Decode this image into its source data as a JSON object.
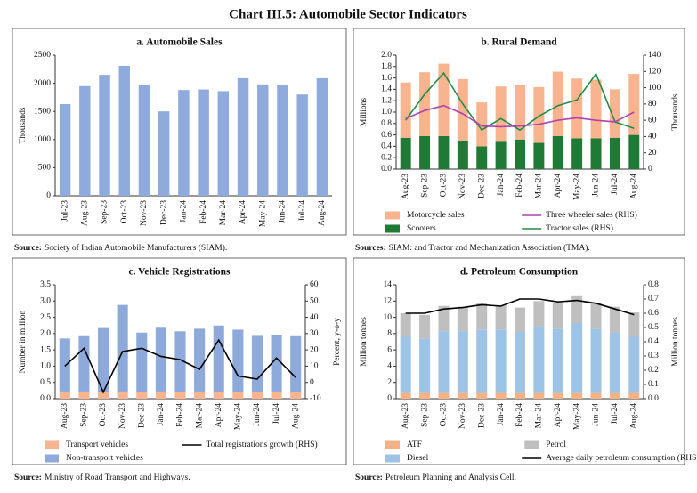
{
  "title": "Chart III.5: Automobile Sector Indicators",
  "chart_data": [
    {
      "type": "bar",
      "title": "a. Automobile Sales",
      "ylabel": "Thousands",
      "color": "#8faadc",
      "categories": [
        "Jul-23",
        "Aug-23",
        "Sep-23",
        "Oct-23",
        "Nov-23",
        "Dec-23",
        "Jan-24",
        "Feb-24",
        "Mar-24",
        "Apr-24",
        "May-24",
        "Jun-24",
        "Jul-24",
        "Aug-24"
      ],
      "values": [
        1630,
        1950,
        2150,
        2310,
        1970,
        1500,
        1880,
        1890,
        1860,
        2090,
        1980,
        1970,
        1800,
        2090
      ],
      "ylim": [
        0,
        2500
      ],
      "yticks": [
        0,
        500,
        1000,
        1500,
        2000,
        2500
      ],
      "source_label": "Source:",
      "source": "Society of Indian Automobile Manufacturers (SIAM)."
    },
    {
      "type": "combo",
      "title": "b. Rural Demand",
      "ylabel": "Millions",
      "y2label": "Thousands",
      "categories": [
        "Aug-23",
        "Sep-23",
        "Oct-23",
        "Nov-23",
        "Dec-23",
        "Jan-24",
        "Feb-24",
        "Mar-24",
        "Apr-24",
        "May-24",
        "Jun-24",
        "Jul-24",
        "Aug-24"
      ],
      "series": [
        {
          "name": "Scooters",
          "kind": "bar",
          "color": "#1f7a35",
          "values": [
            0.55,
            0.58,
            0.58,
            0.5,
            0.4,
            0.48,
            0.52,
            0.46,
            0.58,
            0.54,
            0.54,
            0.55,
            0.6
          ]
        },
        {
          "name": "Motorcycle sales",
          "kind": "bar",
          "color": "#f7b48f",
          "values": [
            0.97,
            1.12,
            1.27,
            1.08,
            0.77,
            0.97,
            0.95,
            0.98,
            1.13,
            1.05,
            1.03,
            0.85,
            1.07
          ]
        },
        {
          "name": "Tractor sales (RHS)",
          "kind": "line",
          "axis": "y2",
          "color": "#1e8c46",
          "values": [
            60,
            92,
            118,
            80,
            48,
            62,
            48,
            65,
            78,
            85,
            117,
            58,
            50
          ]
        },
        {
          "name": "Three wheeler sales (RHS)",
          "kind": "line",
          "axis": "y2",
          "color": "#b03fb0",
          "values": [
            62,
            72,
            78,
            68,
            53,
            52,
            53,
            55,
            60,
            63,
            60,
            58,
            70
          ]
        }
      ],
      "ylim": [
        0,
        2
      ],
      "yticks": [
        {
          "value": 0,
          "label": "0.0"
        },
        0.2,
        0.4,
        0.6,
        0.8,
        {
          "value": 1,
          "label": "1.0"
        },
        1.2,
        1.4,
        1.6,
        1.8,
        {
          "value": 2,
          "label": "2.0"
        }
      ],
      "y2lim": [
        0,
        140
      ],
      "y2ticks": [
        0,
        20,
        40,
        60,
        80,
        100,
        120,
        140
      ],
      "source_label": "Sources:",
      "source": "SIAM: and Tractor and Mechanization Association (TMA)."
    },
    {
      "type": "combo",
      "title": "c. Vehicle Registrations",
      "ylabel": "Number in million",
      "y2label": "Percent, y-o-y",
      "categories": [
        "Aug-23",
        "Sep-23",
        "Oct-23",
        "Nov-23",
        "Dec-23",
        "Jan-24",
        "Feb-24",
        "Mar-24",
        "Apr-24",
        "May-24",
        "Jun-24",
        "Jul-24",
        "Aug-24"
      ],
      "series": [
        {
          "name": "Transport vehicles",
          "kind": "bar",
          "color": "#f7b48f",
          "values": [
            0.22,
            0.22,
            0.2,
            0.22,
            0.2,
            0.22,
            0.2,
            0.22,
            0.2,
            0.2,
            0.2,
            0.22,
            0.2
          ]
        },
        {
          "name": "Non-transport vehicles",
          "kind": "bar",
          "color": "#8eaadb",
          "values": [
            1.63,
            1.7,
            1.97,
            2.66,
            1.83,
            1.96,
            1.87,
            1.93,
            2.05,
            1.92,
            1.73,
            1.73,
            1.72
          ]
        },
        {
          "name": "Total registrations growth (RHS)",
          "kind": "line",
          "axis": "y2",
          "color": "#000000",
          "values": [
            10,
            21,
            -6,
            19,
            21,
            16,
            14,
            8,
            26,
            4,
            2,
            15,
            3
          ]
        }
      ],
      "ylim": [
        0,
        3.5
      ],
      "yticks": [
        {
          "value": 0,
          "label": "0.0"
        },
        0.5,
        {
          "value": 1,
          "label": "1.0"
        },
        1.5,
        {
          "value": 2,
          "label": "2.0"
        },
        2.5,
        {
          "value": 3,
          "label": "3.0"
        },
        3.5
      ],
      "y2lim": [
        -10,
        60
      ],
      "y2ticks": [
        -10,
        0,
        10,
        20,
        30,
        40,
        50,
        60
      ],
      "source_label": "Source:",
      "source": "Ministry of Road Transport and Highways."
    },
    {
      "type": "combo",
      "title": "d. Petroleum Consumption",
      "ylabel": "Million tonnes",
      "y2label": "Million tonnes",
      "categories": [
        "Aug-23",
        "Sep-23",
        "Oct-23",
        "Nov-23",
        "Dec-23",
        "Jan-24",
        "Feb-24",
        "Mar-24",
        "Apr-24",
        "May-24",
        "Jun-24",
        "Jul-24",
        "Aug-24"
      ],
      "series": [
        {
          "name": "ATF",
          "kind": "bar",
          "color": "#f4b183",
          "values": [
            0.7,
            0.7,
            0.7,
            0.7,
            0.7,
            0.7,
            0.7,
            0.7,
            0.7,
            0.7,
            0.7,
            0.7,
            0.7
          ]
        },
        {
          "name": "Diesel",
          "kind": "bar",
          "color": "#9dc3e6",
          "values": [
            6.9,
            6.7,
            7.6,
            7.6,
            7.8,
            7.8,
            7.5,
            8.2,
            7.9,
            8.6,
            7.9,
            7.4,
            6.9
          ]
        },
        {
          "name": "Petrol",
          "kind": "bar",
          "color": "#bfbfbf",
          "values": [
            2.9,
            2.9,
            3.1,
            3.0,
            3.2,
            3.0,
            3.0,
            3.1,
            3.2,
            3.3,
            3.2,
            3.2,
            3.0
          ]
        },
        {
          "name": "Average daily petroleum consumption (RHS)",
          "kind": "line",
          "axis": "y2",
          "color": "#000000",
          "values": [
            0.6,
            0.6,
            0.63,
            0.64,
            0.66,
            0.65,
            0.7,
            0.7,
            0.68,
            0.69,
            0.67,
            0.63,
            0.59
          ]
        }
      ],
      "ylim": [
        0,
        14
      ],
      "yticks": [
        0,
        2,
        4,
        6,
        8,
        10,
        12,
        14
      ],
      "y2lim": [
        0,
        0.8
      ],
      "y2ticks": [
        {
          "value": 0,
          "label": "0.0"
        },
        0.1,
        0.2,
        0.3,
        0.4,
        0.5,
        0.6,
        0.7,
        0.8
      ],
      "source_label": "Source:",
      "source": "Petroleum Planning and Analysis Cell."
    }
  ]
}
